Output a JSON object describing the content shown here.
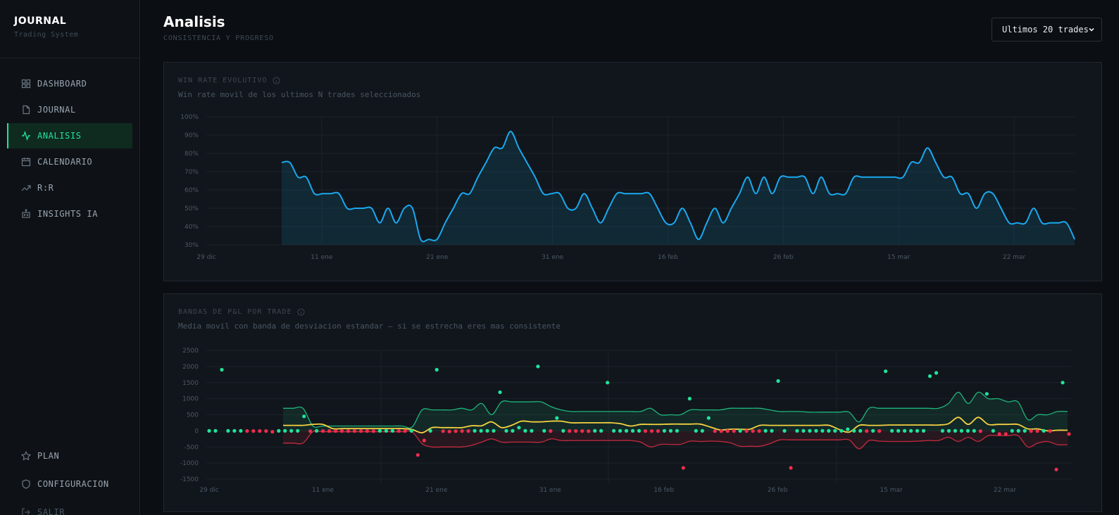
{
  "sidebar": {
    "brand_title": "JOURNAL",
    "brand_subtitle": "Trading System",
    "items": [
      {
        "label": "DASHBOARD",
        "icon": "grid-icon"
      },
      {
        "label": "JOURNAL",
        "icon": "file-icon"
      },
      {
        "label": "ANALISIS",
        "icon": "activity-icon",
        "active": true
      },
      {
        "label": "CALENDARIO",
        "icon": "calendar-icon"
      },
      {
        "label": "R:R",
        "icon": "trending-up-icon"
      },
      {
        "label": "INSIGHTS IA",
        "icon": "robot-icon"
      }
    ],
    "bottom_items": [
      {
        "label": "PLAN",
        "icon": "star-icon"
      },
      {
        "label": "CONFIGURACION",
        "icon": "shield-icon"
      },
      {
        "label": "SALIR",
        "icon": "logout-icon"
      }
    ]
  },
  "header": {
    "title": "Analisis",
    "subtitle": "CONSISTENCIA Y PROGRESO",
    "selector_value": "Ultimos 20 trades"
  },
  "colors": {
    "accent": "#22e39a",
    "winrate_line": "#19a9ef",
    "win_dot": "#22e39a",
    "loss_dot": "#ec2e4b",
    "mean_line": "#f5d142",
    "upper_band": "#1fb47a",
    "lower_band": "#c42a3f"
  },
  "winrate_card": {
    "title": "WIN RATE EVOLUTIVO",
    "description": "Win rate movil de los ultimos N trades seleccionados"
  },
  "bands_card": {
    "title": "BANDAS DE P&L POR TRADE",
    "description": "Media movil con banda de desviacion estandar — si se estrecha eres mas consistente"
  },
  "chart_data": [
    {
      "type": "area",
      "title": "WIN RATE EVOLUTIVO",
      "ylim": [
        30,
        100
      ],
      "y_ticks": [
        "100%",
        "90%",
        "80%",
        "70%",
        "60%",
        "50%",
        "40%",
        "30%"
      ],
      "x_ticks": [
        "29 dic",
        "11 ene",
        "21 ene",
        "31 ene",
        "16 feb",
        "26 feb",
        "15 mar",
        "22 mar"
      ],
      "grid": true,
      "series": [
        {
          "values": [
            75,
            75,
            67,
            67,
            58,
            58,
            58,
            58,
            50,
            50,
            50,
            50,
            42,
            50,
            42,
            50,
            50,
            33,
            33,
            33,
            42,
            50,
            58,
            58,
            67,
            75,
            83,
            83,
            92,
            83,
            75,
            67,
            58,
            58,
            58,
            50,
            50,
            58,
            50,
            42,
            50,
            58,
            58,
            58,
            58,
            58,
            50,
            42,
            42,
            50,
            42,
            33,
            42,
            50,
            42,
            50,
            58,
            67,
            58,
            67,
            58,
            67,
            67,
            67,
            67,
            58,
            67,
            58,
            58,
            58,
            67,
            67,
            67,
            67,
            67,
            67,
            67,
            75,
            75,
            83,
            75,
            67,
            67,
            58,
            58,
            50,
            58,
            58,
            50,
            42,
            42,
            42,
            50,
            42,
            42,
            42,
            42,
            33
          ]
        }
      ]
    },
    {
      "type": "scatter",
      "title": "BANDAS DE P&L POR TRADE",
      "ylim": [
        -1500,
        2500
      ],
      "y_ticks": [
        "2500",
        "2000",
        "1500",
        "1000",
        "500",
        "0",
        "-500",
        "-1000",
        "-1500"
      ],
      "x_ticks": [
        "29 dic",
        "11 ene",
        "21 ene",
        "31 ene",
        "16 feb",
        "26 feb",
        "15 mar",
        "22 mar"
      ],
      "grid": true,
      "trade_pnl": [
        0,
        0,
        1900,
        0,
        0,
        0,
        -5,
        -5,
        -5,
        -5,
        -30,
        0,
        0,
        0,
        0,
        450,
        -10,
        0,
        -5,
        -5,
        -5,
        -5,
        -5,
        -5,
        -5,
        -5,
        -10,
        0,
        0,
        0,
        -5,
        -5,
        0,
        -750,
        -300,
        0,
        1900,
        -10,
        -20,
        -10,
        -5,
        -5,
        0,
        0,
        0,
        0,
        1200,
        0,
        0,
        100,
        0,
        0,
        2000,
        0,
        -5,
        400,
        0,
        -5,
        -5,
        -5,
        -10,
        0,
        0,
        1500,
        0,
        0,
        0,
        0,
        0,
        -5,
        -5,
        -5,
        0,
        0,
        0,
        -1150,
        1000,
        0,
        0,
        400,
        -10,
        -10,
        -5,
        -5,
        0,
        -5,
        -5,
        -5,
        0,
        0,
        1550,
        0,
        -1150,
        0,
        0,
        0,
        0,
        0,
        0,
        0,
        0,
        50,
        0,
        0,
        -5,
        0,
        -5,
        1850,
        0,
        0,
        0,
        0,
        0,
        0,
        1700,
        1800,
        0,
        0,
        0,
        0,
        0,
        0,
        -10,
        1150,
        0,
        -100,
        -100,
        0,
        0,
        0,
        -5,
        -5,
        0,
        -5,
        -1200,
        1500,
        -100
      ],
      "rolling_mean": [
        170,
        170,
        170,
        200,
        200,
        70,
        70,
        70,
        70,
        70,
        70,
        70,
        70,
        40,
        -60,
        100,
        100,
        100,
        100,
        160,
        160,
        280,
        100,
        170,
        300,
        280,
        280,
        300,
        300,
        250,
        250,
        250,
        250,
        250,
        220,
        150,
        200,
        200,
        200,
        210,
        210,
        210,
        210,
        120,
        30,
        50,
        50,
        50,
        170,
        170,
        170,
        170,
        170,
        170,
        170,
        170,
        40,
        -40,
        170,
        170,
        170,
        180,
        180,
        180,
        180,
        180,
        180,
        220,
        420,
        200,
        420,
        200,
        200,
        200,
        200,
        60,
        60,
        0,
        20,
        20
      ],
      "upper_band": [
        700,
        700,
        700,
        150,
        150,
        150,
        150,
        150,
        150,
        150,
        150,
        150,
        150,
        120,
        650,
        650,
        650,
        650,
        700,
        650,
        850,
        500,
        900,
        900,
        900,
        900,
        900,
        750,
        650,
        600,
        600,
        600,
        600,
        600,
        600,
        600,
        600,
        700,
        500,
        500,
        500,
        650,
        650,
        650,
        650,
        700,
        700,
        700,
        700,
        650,
        600,
        600,
        600,
        580,
        580,
        580,
        580,
        580,
        280,
        700,
        700,
        700,
        700,
        700,
        700,
        700,
        700,
        850,
        1200,
        850,
        1200,
        1000,
        1000,
        900,
        900,
        350,
        500,
        500,
        600,
        600
      ],
      "lower_band": [
        -380,
        -380,
        -380,
        -30,
        -30,
        -30,
        -30,
        -30,
        -30,
        -30,
        -30,
        -30,
        -30,
        -30,
        -400,
        -500,
        -500,
        -500,
        -500,
        -450,
        -350,
        -250,
        -350,
        -350,
        -350,
        -350,
        -350,
        -250,
        -300,
        -300,
        -300,
        -300,
        -300,
        -300,
        -300,
        -300,
        -350,
        -500,
        -420,
        -420,
        -420,
        -320,
        -330,
        -320,
        -330,
        -370,
        -480,
        -480,
        -480,
        -400,
        -280,
        -280,
        -280,
        -280,
        -280,
        -280,
        -280,
        -280,
        -560,
        -300,
        -320,
        -330,
        -330,
        -330,
        -320,
        -300,
        -300,
        -200,
        -330,
        -200,
        -330,
        -150,
        -150,
        -150,
        -150,
        -500,
        -380,
        -330,
        -430,
        -430
      ]
    }
  ]
}
